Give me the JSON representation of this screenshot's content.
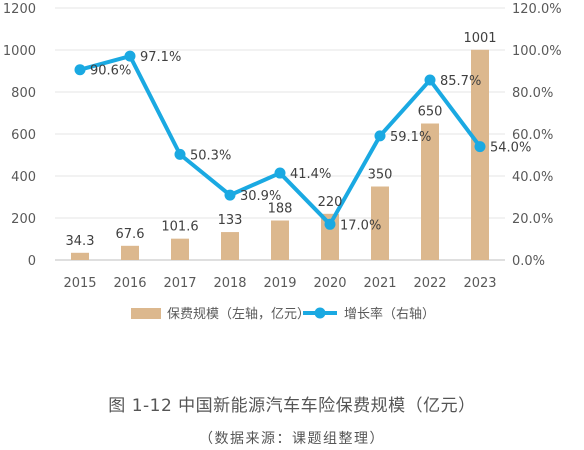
{
  "chart_data": {
    "type": "bar+line",
    "categories": [
      "2015",
      "2016",
      "2017",
      "2018",
      "2019",
      "2020",
      "2021",
      "2022",
      "2023"
    ],
    "bar_series": {
      "name": "保费规模（左轴，亿元）",
      "values": [
        34.3,
        67.6,
        101.6,
        133,
        188,
        220,
        350,
        650,
        1001
      ],
      "labels": [
        "34.3",
        "67.6",
        "101.6",
        "133",
        "188",
        "220",
        "350",
        "650",
        "1001"
      ],
      "color": "#dcb88e"
    },
    "line_series": {
      "name": "增长率（右轴）",
      "values": [
        90.6,
        97.1,
        50.3,
        30.9,
        41.4,
        17.0,
        59.1,
        85.7,
        54.0
      ],
      "labels": [
        "90.6%",
        "97.1%",
        "50.3%",
        "30.9%",
        "41.4%",
        "17.0%",
        "59.1%",
        "85.7%",
        "54.0%"
      ],
      "color": "#1aa9e2"
    },
    "left_axis": {
      "ylim": [
        0,
        1200
      ],
      "ticks": [
        "0",
        "200",
        "400",
        "600",
        "800",
        "1000",
        "1200"
      ]
    },
    "right_axis": {
      "ylim": [
        0,
        120
      ],
      "ticks": [
        "0.0%",
        "20.0%",
        "40.0%",
        "60.0%",
        "80.0%",
        "100.0%",
        "120.0%"
      ]
    },
    "grid": true,
    "legend_position": "bottom"
  },
  "caption": {
    "title": "图 1-12 中国新能源汽车车险保费规模（亿元）",
    "source": "（数据来源：课题组整理）"
  }
}
